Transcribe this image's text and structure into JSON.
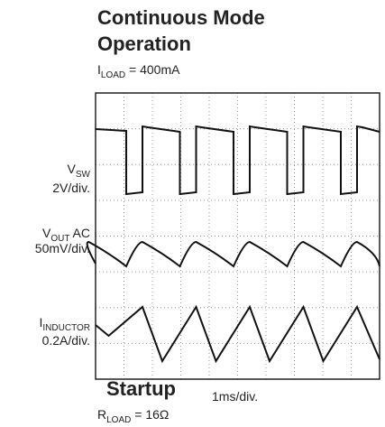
{
  "header": {
    "title_line1": "Continuous Mode",
    "title_line2": "Operation",
    "condition": {
      "symbol": "I",
      "subscript": "LOAD",
      "text": " = 400mA"
    }
  },
  "channels": [
    {
      "symbol": "V",
      "subscript": "SW",
      "suffix": "",
      "scale": "2V/div."
    },
    {
      "symbol": "V",
      "subscript": "OUT",
      "suffix": " AC",
      "scale": "50mV/div."
    },
    {
      "symbol": "I",
      "subscript": "INDUCTOR",
      "suffix": "",
      "scale": "0.2A/div."
    }
  ],
  "timebase": "1ms/div.",
  "footer": {
    "title": "Startup",
    "condition": {
      "symbol": "R",
      "subscript": "LOAD",
      "text": " = 16Ω"
    }
  }
}
